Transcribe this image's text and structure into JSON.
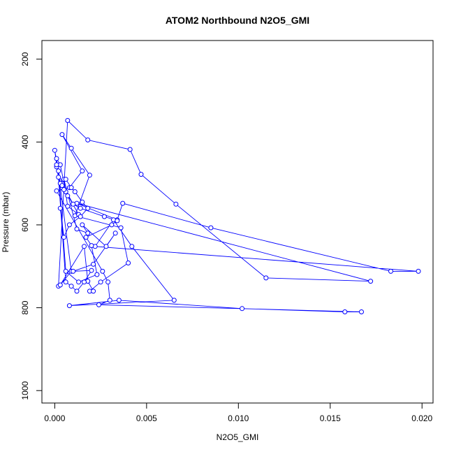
{
  "chart_data": {
    "type": "scatter",
    "title": "ATOM2 Northbound N2O5_GMI",
    "xlabel": "N2O5_GMI",
    "ylabel": "Pressure (mbar)",
    "xlim": [
      -0.0007,
      0.0206
    ],
    "ylim": [
      1030,
      155
    ],
    "y_reversed": true,
    "x_ticks": [
      0.0,
      0.005,
      0.01,
      0.015,
      0.02
    ],
    "x_tick_labels": [
      "0.000",
      "0.005",
      "0.010",
      "0.015",
      "0.020"
    ],
    "y_ticks": [
      200,
      400,
      600,
      800,
      1000
    ],
    "y_tick_labels": [
      "200",
      "400",
      "600",
      "800",
      "1000"
    ],
    "series_color": "#0000ff",
    "series": [
      {
        "style": "line+points",
        "x": [
          0.0002,
          0.0007,
          0.0018,
          0.0041,
          0.0047,
          0.0066,
          0.0115,
          0.0172,
          0.0012,
          0.0034,
          0.0037,
          0.0085,
          0.0183,
          0.0198,
          0.0022,
          0.0032,
          0.0042,
          0.0065,
          0.0008,
          0.0035,
          0.0102,
          0.0158,
          0.0167,
          0.0024,
          0.003,
          0.0029,
          0.0026,
          0.0001,
          0.0008,
          0.0015,
          0.0004,
          0.0009,
          0.0019,
          0.0011,
          0.0036,
          0.004,
          0.0025,
          0.0019,
          0.0021,
          0.0018,
          0.0016,
          0.0003,
          0.0009,
          0.0001,
          0.0003,
          0.0006,
          0.0013,
          0.0007,
          0.0005,
          0.0012,
          0.0018,
          0.0015,
          0.0028,
          0.0033,
          0.0021,
          0.001,
          0.002,
          0.0016,
          0.0012,
          0.0009,
          0.0006,
          0.0002,
          0.0001,
          0.0004,
          0.001,
          0.0014,
          0.0027,
          0.0034,
          0.0031,
          0.0017,
          0.002,
          0.0023,
          0.0013,
          0.0006,
          0.0002,
          0.0,
          0.0001,
          0.0003,
          0.0005,
          0.0007,
          0.0004,
          0.0006,
          0.0009,
          0.0011,
          0.0015,
          0.0018,
          0.0014,
          0.0008,
          0.0005,
          0.0003
        ],
        "y": [
          748,
          348,
          395,
          418,
          478,
          550,
          728,
          736,
          548,
          588,
          548,
          607,
          712,
          712,
          652,
          588,
          652,
          782,
          795,
          782,
          802,
          810,
          810,
          793,
          782,
          738,
          712,
          518,
          510,
          470,
          382,
          415,
          480,
          578,
          607,
          692,
          738,
          760,
          760,
          736,
          652,
          745,
          712,
          440,
          455,
          520,
          575,
          555,
          490,
          610,
          620,
          600,
          652,
          620,
          695,
          712,
          710,
          738,
          760,
          748,
          738,
          485,
          460,
          500,
          550,
          560,
          580,
          590,
          600,
          630,
          650,
          720,
          738,
          712,
          470,
          420,
          455,
          500,
          515,
          530,
          505,
          490,
          510,
          520,
          545,
          560,
          580,
          600,
          630,
          560
        ]
      }
    ]
  }
}
